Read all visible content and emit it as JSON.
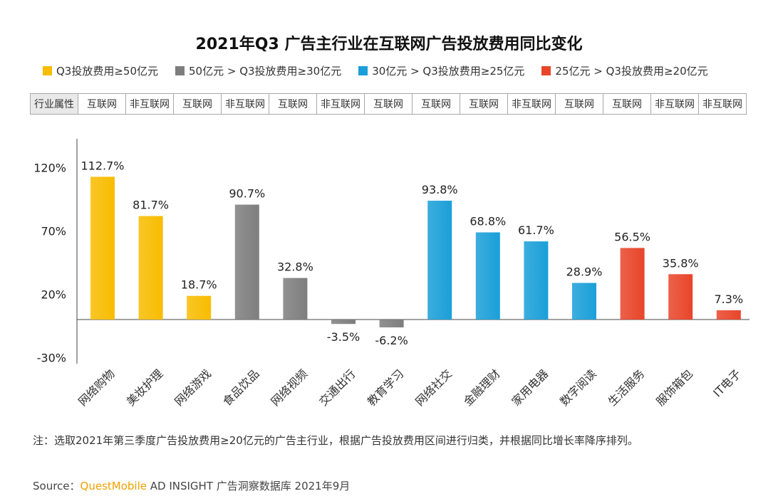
{
  "colors": {
    "yellow": "#f8bc00",
    "gray": "#7e7e7e",
    "blue": "#1a9fd8",
    "red": "#e8452a"
  },
  "chart_data": {
    "type": "bar",
    "title": "2021年Q3 广告主行业在互联网广告投放费用同比变化",
    "legend": [
      {
        "label": "Q3投放费用≥50亿元",
        "color": "#f8bc00"
      },
      {
        "label": "50亿元 > Q3投放费用≥30亿元",
        "color": "#7e7e7e"
      },
      {
        "label": "30亿元 > Q3投放费用≥25亿元",
        "color": "#1a9fd8"
      },
      {
        "label": "25亿元 > Q3投放费用≥20亿元",
        "color": "#e8452a"
      }
    ],
    "legend_position": "top",
    "attribute_header": "行业属性",
    "categories": [
      "网络购物",
      "美妆护理",
      "网络游戏",
      "食品饮品",
      "网络视频",
      "交通出行",
      "教育学习",
      "网络社交",
      "金融理财",
      "家用电器",
      "数字阅读",
      "生活服务",
      "服饰箱包",
      "IT电子"
    ],
    "attributes": [
      "互联网",
      "非互联网",
      "互联网",
      "非互联网",
      "互联网",
      "非互联网",
      "互联网",
      "互联网",
      "互联网",
      "非互联网",
      "互联网",
      "互联网",
      "非互联网",
      "非互联网"
    ],
    "values": [
      112.7,
      81.7,
      18.7,
      90.7,
      32.8,
      -3.5,
      -6.2,
      93.8,
      68.8,
      61.7,
      28.9,
      56.5,
      35.8,
      7.3
    ],
    "value_labels": [
      "112.7%",
      "81.7%",
      "18.7%",
      "90.7%",
      "32.8%",
      "-3.5%",
      "-6.2%",
      "93.8%",
      "68.8%",
      "61.7%",
      "28.9%",
      "56.5%",
      "35.8%",
      "7.3%"
    ],
    "group": [
      0,
      0,
      0,
      1,
      1,
      1,
      1,
      2,
      2,
      2,
      2,
      3,
      3,
      3
    ],
    "y_ticks": [
      120,
      70,
      20,
      -30
    ],
    "y_tick_labels": [
      "120%",
      "70%",
      "20%",
      "-30%"
    ],
    "ylim": [
      -30,
      150
    ],
    "grid": false
  },
  "note": "注：选取2021年第三季度广告投放费用≥20亿元的广告主行业，根据广告投放费用区间进行归类，并根据同比增长率降序排列。",
  "source": {
    "prefix": "Source：",
    "brand": "QuestMobile",
    "rest": " AD INSIGHT 广告洞察数据库 2021年9月"
  }
}
